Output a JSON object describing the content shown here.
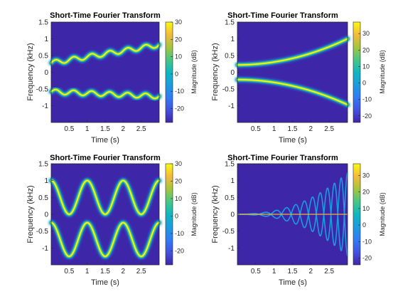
{
  "chart_data": [
    {
      "type": "heatmap",
      "title": "Short-Time Fourier Transform",
      "xlabel": "Time (s)",
      "ylabel": "Frequency (kHz)",
      "colorbar_label": "Magnitude (dB)",
      "xlim": [
        0,
        3
      ],
      "ylim": [
        -1.5,
        1.5
      ],
      "x_ticks": [
        "0.5",
        "1",
        "1.5",
        "2",
        "2.5"
      ],
      "y_ticks": [
        "-1",
        "-0.5",
        "0",
        "0.5",
        "1",
        "1.5"
      ],
      "clim": [
        -28,
        30
      ],
      "colorbar_ticks": [
        "-20",
        "-10",
        "0",
        "10",
        "20",
        "30"
      ],
      "colormap": "parula",
      "signal": "two sinusoidal FM tones",
      "tracks": [
        {
          "center_start": 0.28,
          "center_end": 0.82,
          "amplitude": 0.07,
          "periods": 6
        },
        {
          "center_start": -0.58,
          "center_end": -0.72,
          "amplitude": 0.07,
          "periods": 6
        }
      ]
    },
    {
      "type": "heatmap",
      "title": "Short-Time Fourier Transform",
      "xlabel": "Time (s)",
      "ylabel": "Frequency (kHz)",
      "colorbar_label": "Magnitude (dB)",
      "xlim": [
        0,
        3
      ],
      "ylim": [
        -1.5,
        1.5
      ],
      "x_ticks": [
        "0.5",
        "1",
        "1.5",
        "2",
        "2.5"
      ],
      "y_ticks": [
        "-1",
        "-0.5",
        "0",
        "0.5",
        "1",
        "1.5"
      ],
      "clim": [
        -24,
        37
      ],
      "colorbar_ticks": [
        "-20",
        "-10",
        "0",
        "10",
        "20",
        "30"
      ],
      "colormap": "parula",
      "signal": "two quadratic chirps",
      "tracks": [
        {
          "f_at_0": 0.22,
          "f_at_3": 1.0
        },
        {
          "f_at_0": -0.22,
          "f_at_3": -0.97
        }
      ]
    },
    {
      "type": "heatmap",
      "title": "Short-Time Fourier Transform",
      "xlabel": "Time (s)",
      "ylabel": "Frequency (kHz)",
      "colorbar_label": "Magnitude (dB)",
      "xlim": [
        0,
        3
      ],
      "ylim": [
        -1.5,
        1.5
      ],
      "x_ticks": [
        "0.5",
        "1",
        "1.5",
        "2",
        "2.5"
      ],
      "y_ticks": [
        "-1",
        "-0.5",
        "0",
        "0.5",
        "1",
        "1.5"
      ],
      "clim": [
        -28,
        30
      ],
      "colorbar_ticks": [
        "-20",
        "-10",
        "0",
        "10",
        "20",
        "30"
      ],
      "colormap": "parula",
      "signal": "two large-deviation sinusoidal FM tones",
      "tracks": [
        {
          "center": 0.5,
          "amplitude": 0.5,
          "periods": 3
        },
        {
          "center": -0.75,
          "amplitude": 0.5,
          "periods": 3
        }
      ]
    },
    {
      "type": "heatmap",
      "title": "Short-Time Fourier Transform",
      "xlabel": "Time (s)",
      "ylabel": "Frequency (kHz)",
      "colorbar_label": "Magnitude (dB)",
      "xlim": [
        0,
        3
      ],
      "ylim": [
        -1.5,
        1.5
      ],
      "x_ticks": [
        "0.5",
        "1",
        "1.5",
        "2",
        "2.5"
      ],
      "y_ticks": [
        "-1",
        "-0.5",
        "0",
        "0.5",
        "1",
        "1.5"
      ],
      "clim": [
        -24,
        37
      ],
      "colorbar_ticks": [
        "-20",
        "-10",
        "0",
        "10",
        "20",
        "30"
      ],
      "colormap": "parula",
      "signal": "symmetric FM with growing deviation",
      "peaks": [
        0.0,
        0.27,
        1.24
      ]
    }
  ]
}
